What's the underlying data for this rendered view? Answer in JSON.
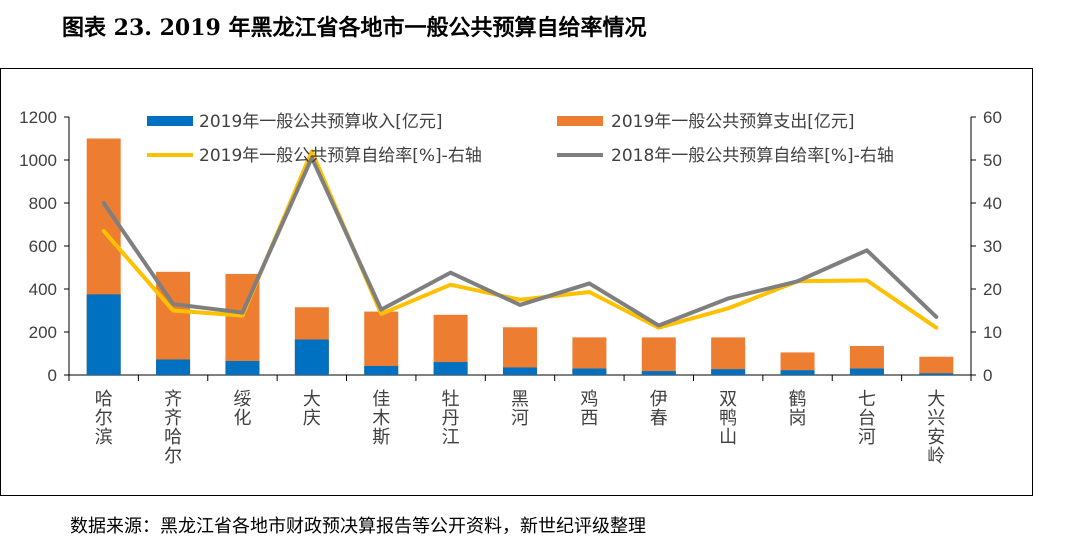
{
  "figure_title": "图表 23. 2019 年黑龙江省各地市一般公共预算自给率情况",
  "source_note": "数据来源：黑龙江省各地市财政预决算报告等公开资料，新世纪评级整理",
  "colors": {
    "revenue": "#0070C0",
    "expenditure": "#ED7D31",
    "ratio_2019": "#FFC000",
    "ratio_2018": "#7F7F7F"
  },
  "chart_data": {
    "type": "bar",
    "categories": [
      "哈尔滨",
      "齐齐哈尔",
      "绥化",
      "大庆",
      "佳木斯",
      "牡丹江",
      "黑河",
      "鸡西",
      "伊春",
      "双鸭山",
      "鹤岗",
      "七台河",
      "大兴安岭"
    ],
    "series": [
      {
        "name": "2019年一般公共预算收入[亿元]",
        "kind": "bar",
        "axis": "left",
        "color": "#0070C0",
        "values": [
          375,
          72,
          65,
          165,
          42,
          60,
          35,
          30,
          18,
          27,
          22,
          30,
          8
        ]
      },
      {
        "name": "2019年一般公共预算支出[亿元]",
        "kind": "bar",
        "axis": "left",
        "color": "#ED7D31",
        "values": [
          1100,
          480,
          470,
          315,
          295,
          280,
          222,
          175,
          175,
          175,
          105,
          135,
          85
        ]
      },
      {
        "name": "2019年一般公共预算自给率[%]-右轴",
        "kind": "line",
        "axis": "right",
        "color": "#FFC000",
        "values": [
          33.5,
          15,
          13.8,
          52,
          14.2,
          21,
          17.5,
          19.3,
          11,
          15.5,
          21.8,
          22,
          11
        ]
      },
      {
        "name": "2018年一般公共预算自给率[%]-右轴",
        "kind": "line",
        "axis": "right",
        "color": "#7F7F7F",
        "values": [
          40,
          16.5,
          14.5,
          50.5,
          15.2,
          23.8,
          16.3,
          21.3,
          11.5,
          17.8,
          21.8,
          29,
          13.5
        ]
      }
    ],
    "y_left": {
      "min": 0,
      "max": 1200,
      "ticks": [
        "0",
        "200",
        "400",
        "600",
        "800",
        "1000",
        "1200"
      ]
    },
    "y_right": {
      "min": 0,
      "max": 60,
      "ticks": [
        "0",
        "10",
        "20",
        "30",
        "40",
        "50",
        "60"
      ]
    },
    "bar_mode": "overlay",
    "grid": false,
    "legend_position": "top"
  }
}
